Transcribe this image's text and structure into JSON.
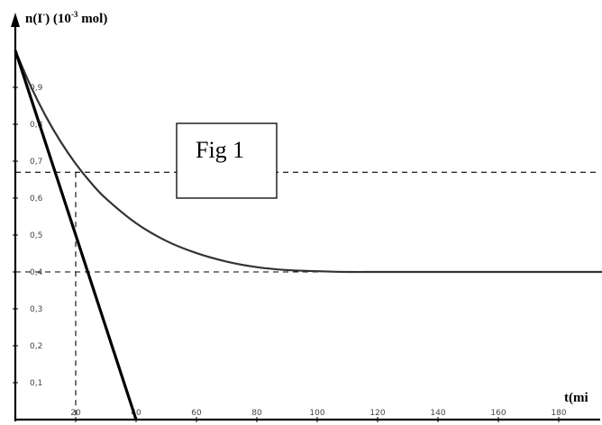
{
  "chart_data": {
    "type": "line",
    "ylabel": {
      "main": "n(I",
      "sup1": "-",
      "mid": ") (10",
      "sup2": "-3",
      "end": " mol)"
    },
    "xlabel": "t(mi",
    "annotation": "Fig 1",
    "xlim": [
      0,
      195
    ],
    "ylim": [
      0,
      1.0
    ],
    "x_ticks": [
      20,
      40,
      60,
      80,
      100,
      120,
      140,
      160,
      180
    ],
    "x_tick_labels": [
      "20",
      "40",
      "60",
      "80",
      "100",
      "120",
      "140",
      "160",
      "180"
    ],
    "y_ticks": [
      0.1,
      0.2,
      0.3,
      0.4,
      0.5,
      0.6,
      0.7,
      0.8,
      0.9
    ],
    "y_tick_labels": [
      "0,1",
      "0,2",
      "0,3",
      "0,4",
      "0,5",
      "0,6",
      "0,7",
      "0,8",
      "0,9"
    ],
    "series": [
      {
        "x": [
          0,
          5,
          10,
          15,
          20,
          25,
          30,
          40,
          50,
          60,
          70,
          80,
          90,
          100,
          110,
          120,
          130,
          140,
          160,
          180,
          195
        ],
        "y": [
          1.0,
          0.905,
          0.823,
          0.753,
          0.693,
          0.642,
          0.599,
          0.532,
          0.484,
          0.451,
          0.428,
          0.413,
          0.405,
          0.402,
          0.4,
          0.4,
          0.4,
          0.4,
          0.4,
          0.4,
          0.4
        ]
      }
    ],
    "tangent": {
      "x": [
        0,
        40
      ],
      "y": [
        1.0,
        0.0
      ]
    },
    "reference_lines": {
      "horizontal": [
        0.67,
        0.4
      ],
      "vertical": [
        {
          "x": 20,
          "y_top": 0.67
        }
      ]
    },
    "grid": false
  }
}
